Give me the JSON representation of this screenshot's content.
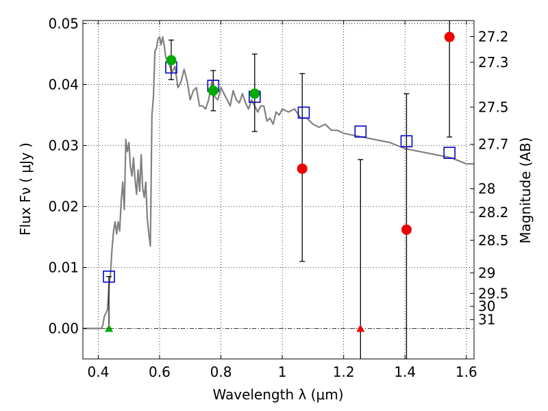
{
  "chart_data": {
    "type": "scatter",
    "title": "",
    "xlabel": "Wavelength  λ (μm)",
    "ylabel": "Flux  Fν  ( μJy )",
    "ylabel2": "Magnitude (AB)",
    "xlim": [
      0.35,
      1.625
    ],
    "ylim": [
      -0.005,
      0.0505
    ],
    "grid": true,
    "xticks": [
      0.4,
      0.6,
      0.8,
      1.0,
      1.2,
      1.4,
      1.6
    ],
    "xtick_labels": [
      "0.4",
      "0.6",
      "0.8",
      "1",
      "1.2",
      "1.4",
      "1.6"
    ],
    "yticks": [
      0.0,
      0.01,
      0.02,
      0.03,
      0.04,
      0.05
    ],
    "ytick_labels": [
      "0.00",
      "0.01",
      "0.02",
      "0.03",
      "0.04",
      "0.05"
    ],
    "magnitude_ticks": [
      "27.2",
      "27.3",
      "27.5",
      "27.7",
      "28",
      "28.2",
      "28.5",
      "29",
      "29.5",
      "30",
      "31"
    ],
    "series": [
      {
        "kind": "line",
        "color": "#808080",
        "x": [
          0.35,
          0.41,
          0.415,
          0.42,
          0.43,
          0.435,
          0.44,
          0.445,
          0.45,
          0.455,
          0.46,
          0.465,
          0.47,
          0.475,
          0.48,
          0.485,
          0.49,
          0.495,
          0.5,
          0.505,
          0.51,
          0.515,
          0.52,
          0.525,
          0.53,
          0.535,
          0.54,
          0.545,
          0.55,
          0.555,
          0.56,
          0.565,
          0.57,
          0.575,
          0.58,
          0.585,
          0.59,
          0.595,
          0.6,
          0.605,
          0.61,
          0.615,
          0.62,
          0.63,
          0.64,
          0.65,
          0.66,
          0.67,
          0.68,
          0.69,
          0.7,
          0.71,
          0.72,
          0.73,
          0.74,
          0.75,
          0.76,
          0.77,
          0.78,
          0.79,
          0.8,
          0.81,
          0.82,
          0.83,
          0.84,
          0.85,
          0.86,
          0.87,
          0.88,
          0.89,
          0.9,
          0.91,
          0.92,
          0.93,
          0.94,
          0.95,
          0.96,
          0.97,
          0.98,
          0.99,
          1.0,
          1.02,
          1.04,
          1.06,
          1.08,
          1.1,
          1.12,
          1.14,
          1.16,
          1.18,
          1.2,
          1.25,
          1.3,
          1.35,
          1.4,
          1.45,
          1.5,
          1.55,
          1.6,
          1.625
        ],
        "y": [
          0.0,
          0.0,
          0.0005,
          0.002,
          0.003,
          0.007,
          0.009,
          0.013,
          0.016,
          0.0175,
          0.0155,
          0.0175,
          0.016,
          0.021,
          0.024,
          0.0195,
          0.031,
          0.029,
          0.0305,
          0.0265,
          0.025,
          0.028,
          0.0245,
          0.022,
          0.026,
          0.0225,
          0.0285,
          0.023,
          0.0215,
          0.024,
          0.018,
          0.0155,
          0.0135,
          0.035,
          0.038,
          0.0455,
          0.046,
          0.0475,
          0.0478,
          0.0465,
          0.0478,
          0.0465,
          0.0445,
          0.0435,
          0.042,
          0.043,
          0.0395,
          0.0405,
          0.0425,
          0.0405,
          0.0375,
          0.039,
          0.0395,
          0.0365,
          0.0365,
          0.036,
          0.0375,
          0.0405,
          0.038,
          0.0375,
          0.0395,
          0.0385,
          0.0375,
          0.0365,
          0.039,
          0.0375,
          0.037,
          0.0385,
          0.037,
          0.036,
          0.0375,
          0.0365,
          0.0355,
          0.0365,
          0.0365,
          0.034,
          0.0345,
          0.0335,
          0.0355,
          0.035,
          0.036,
          0.0355,
          0.036,
          0.0345,
          0.0345,
          0.0335,
          0.033,
          0.0335,
          0.0325,
          0.0325,
          0.032,
          0.0315,
          0.031,
          0.0305,
          0.0295,
          0.029,
          0.0285,
          0.028,
          0.027,
          0.027
        ]
      },
      {
        "kind": "model-photometry",
        "marker": "open-square",
        "color": "#0000cc",
        "x": [
          0.435,
          0.638,
          0.775,
          0.91,
          1.07,
          1.255,
          1.405,
          1.545
        ],
        "y": [
          0.0085,
          0.0428,
          0.0398,
          0.038,
          0.0354,
          0.0323,
          0.0307,
          0.0288
        ]
      },
      {
        "kind": "detections",
        "marker": "filled-circle",
        "color": "#00aa00",
        "x": [
          0.638,
          0.775,
          0.91
        ],
        "y": [
          0.044,
          0.039,
          0.0385
        ],
        "yerr_low": [
          0.0408,
          0.0357,
          0.0323
        ],
        "yerr_high": [
          0.0473,
          0.0423,
          0.045
        ]
      },
      {
        "kind": "low-snr",
        "marker": "filled-circle",
        "color": "#ee0000",
        "x": [
          1.065,
          1.405,
          1.545
        ],
        "y": [
          0.0262,
          0.0162,
          0.0478
        ],
        "yerr_low": [
          0.011,
          -0.006,
          0.0314
        ],
        "yerr_high": [
          0.0418,
          0.0385,
          0.052
        ]
      },
      {
        "kind": "upper-limits",
        "marker": "filled-triangle",
        "colors": [
          "#00aa00",
          "#ee0000"
        ],
        "x": [
          0.435,
          1.255
        ],
        "y": [
          0.0,
          0.0
        ],
        "yerr_low": [
          0.0,
          -0.006
        ],
        "yerr_high": [
          0.0085,
          0.0277
        ]
      }
    ]
  }
}
